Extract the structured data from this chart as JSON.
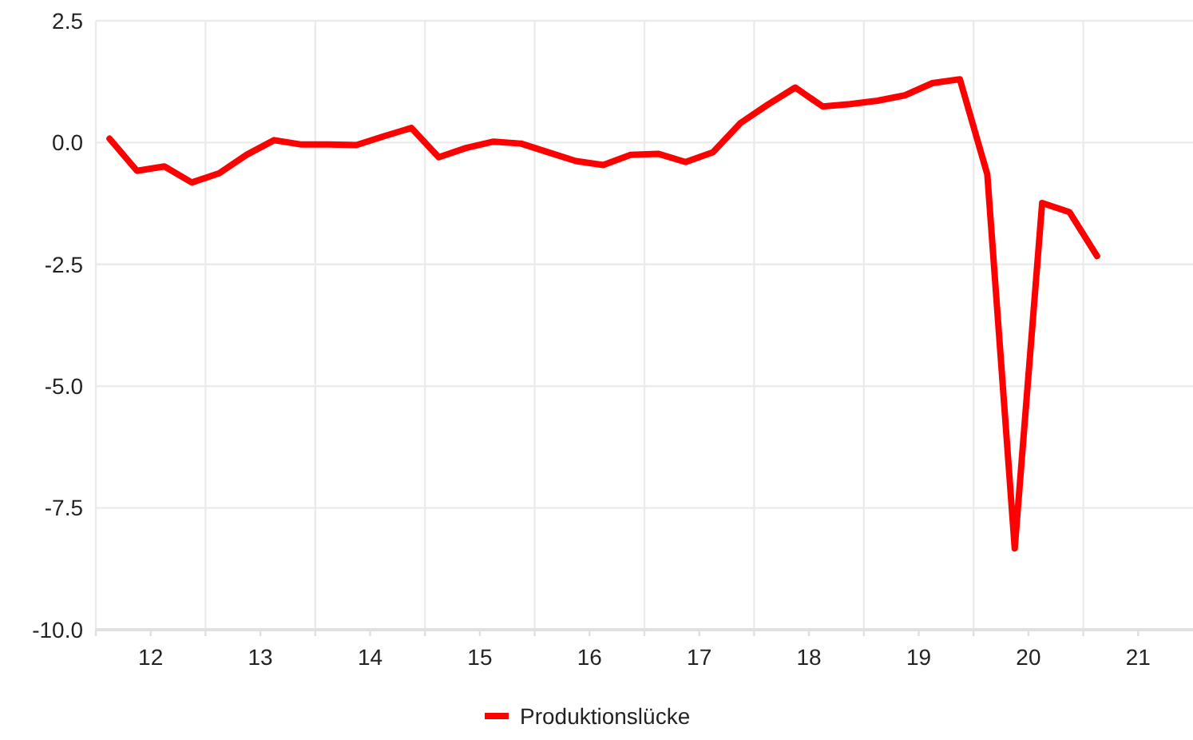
{
  "chart_data": {
    "type": "line",
    "x": [
      11.625,
      11.875,
      12.125,
      12.375,
      12.625,
      12.875,
      13.125,
      13.375,
      13.625,
      13.875,
      14.125,
      14.375,
      14.625,
      14.875,
      15.125,
      15.375,
      15.625,
      15.875,
      16.125,
      16.375,
      16.625,
      16.875,
      17.125,
      17.375,
      17.625,
      17.875,
      18.125,
      18.375,
      18.625,
      18.875,
      19.125,
      19.375,
      19.625,
      19.875,
      20.125,
      20.375,
      20.625
    ],
    "series": [
      {
        "name": "Produktionslücke",
        "color": "#ff0000",
        "values": [
          0.08,
          -0.58,
          -0.49,
          -0.82,
          -0.63,
          -0.25,
          0.05,
          -0.04,
          -0.04,
          -0.05,
          0.13,
          0.3,
          -0.3,
          -0.11,
          0.02,
          -0.02,
          -0.2,
          -0.38,
          -0.46,
          -0.25,
          -0.23,
          -0.4,
          -0.2,
          0.4,
          0.78,
          1.13,
          0.74,
          0.79,
          0.86,
          0.97,
          1.22,
          1.3,
          -0.65,
          -8.33,
          -1.24,
          -1.43,
          -2.33
        ]
      }
    ],
    "xlim": [
      11.5,
      21.5
    ],
    "xticks": [
      {
        "value": 11.5,
        "label": null
      },
      12,
      {
        "value": 12.5,
        "label": null
      },
      13,
      {
        "value": 13.5,
        "label": null
      },
      14,
      {
        "value": 14.5,
        "label": null
      },
      15,
      {
        "value": 15.5,
        "label": null
      },
      16,
      {
        "value": 16.5,
        "label": null
      },
      17,
      {
        "value": 17.5,
        "label": null
      },
      18,
      {
        "value": 18.5,
        "label": null
      },
      19,
      {
        "value": 19.5,
        "label": null
      },
      20,
      {
        "value": 20.5,
        "label": null
      },
      21
    ],
    "ylim": [
      -10,
      2.5
    ],
    "yticks": [
      {
        "value": -10,
        "label": "-10.0"
      },
      -7.5,
      {
        "value": -5,
        "label": "-5.0"
      },
      -2.5,
      {
        "value": 0,
        "label": "0.0"
      },
      2.5
    ],
    "grid": true,
    "legend": "bottom",
    "marker": "none",
    "line_style": "solid"
  }
}
